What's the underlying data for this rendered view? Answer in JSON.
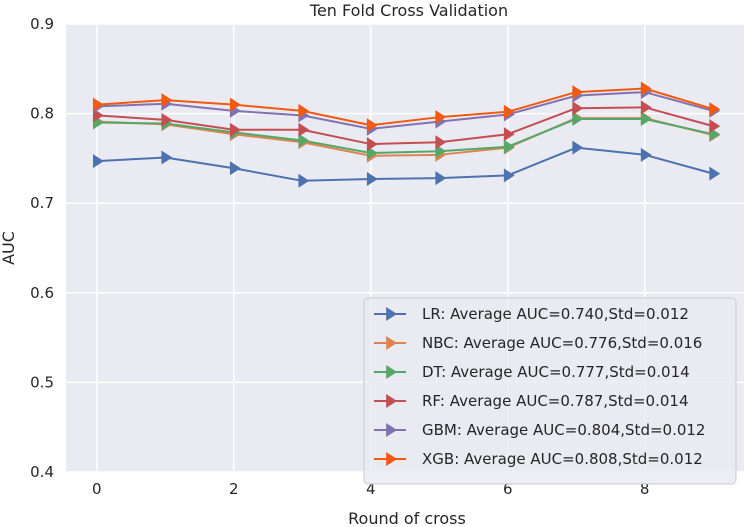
{
  "chart_data": {
    "type": "line",
    "title": "Ten Fold Cross Validation",
    "xlabel": "Round of cross",
    "ylabel": "AUC",
    "xlim": [
      -0.45,
      9.45
    ],
    "ylim": [
      0.4,
      0.9
    ],
    "xticks": [
      0,
      2,
      4,
      6,
      8
    ],
    "yticks": [
      0.4,
      0.5,
      0.6,
      0.7,
      0.8,
      0.9
    ],
    "grid": true,
    "legend_position": "lower-right",
    "x": [
      0,
      1,
      2,
      3,
      4,
      5,
      6,
      7,
      8,
      9
    ],
    "series": [
      {
        "name": "LR: Average AUC=0.740,Std=0.012",
        "color": "#4c72b0",
        "values": [
          0.747,
          0.751,
          0.739,
          0.725,
          0.727,
          0.728,
          0.731,
          0.762,
          0.754,
          0.733
        ]
      },
      {
        "name": "NBC: Average AUC=0.776,Std=0.016",
        "color": "#dd8452",
        "values": [
          0.791,
          0.788,
          0.777,
          0.768,
          0.753,
          0.754,
          0.762,
          0.795,
          0.795,
          0.776
        ]
      },
      {
        "name": "DT: Average AUC=0.777,Std=0.014",
        "color": "#55a868",
        "values": [
          0.79,
          0.789,
          0.779,
          0.77,
          0.756,
          0.758,
          0.763,
          0.794,
          0.794,
          0.777
        ]
      },
      {
        "name": "RF: Average AUC=0.787,Std=0.014",
        "color": "#c44e52",
        "values": [
          0.798,
          0.793,
          0.782,
          0.782,
          0.766,
          0.768,
          0.777,
          0.806,
          0.807,
          0.786
        ]
      },
      {
        "name": "GBM: Average AUC=0.804,Std=0.012",
        "color": "#8172b3",
        "values": [
          0.808,
          0.811,
          0.803,
          0.798,
          0.783,
          0.791,
          0.799,
          0.82,
          0.824,
          0.803
        ]
      },
      {
        "name": "XGB: Average AUC=0.808,Std=0.012",
        "color": "#f15a0f",
        "values": [
          0.81,
          0.815,
          0.81,
          0.803,
          0.787,
          0.796,
          0.802,
          0.824,
          0.828,
          0.805
        ]
      }
    ]
  }
}
